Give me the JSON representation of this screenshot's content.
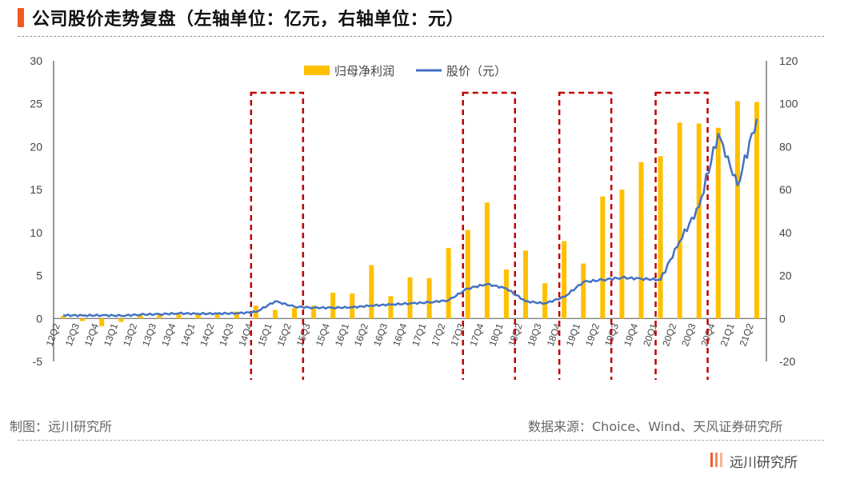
{
  "header": {
    "title": "公司股价走势复盘（左轴单位：亿元，右轴单位：元）"
  },
  "footer": {
    "left_note": "制图：远川研究所",
    "right_note": "数据来源：Choice、Wind、天风证券研究所",
    "brand": "远川研究所"
  },
  "chart_data": {
    "type": "bar",
    "categories": [
      "12Q2",
      "12Q3",
      "12Q4",
      "13Q1",
      "13Q2",
      "13Q3",
      "13Q4",
      "14Q1",
      "14Q2",
      "14Q3",
      "14Q4",
      "15Q1",
      "15Q2",
      "15Q3",
      "15Q4",
      "16Q1",
      "16Q2",
      "16Q3",
      "16Q4",
      "17Q1",
      "17Q2",
      "17Q3",
      "17Q4",
      "18Q1",
      "18Q2",
      "18Q3",
      "18Q4",
      "19Q1",
      "19Q2",
      "19Q3",
      "19Q4",
      "20Q1",
      "20Q2",
      "20Q3",
      "20Q4",
      "21Q1",
      "21Q2"
    ],
    "y_left": {
      "lim": [
        -5,
        30
      ],
      "ticks": [
        -5,
        0,
        5,
        10,
        15,
        20,
        25,
        30
      ],
      "unit": "亿元"
    },
    "y_right": {
      "lim": [
        -20,
        120
      ],
      "ticks": [
        -20,
        0,
        20,
        40,
        60,
        80,
        100,
        120
      ],
      "unit": "元"
    },
    "legend_position": "top-center",
    "series": [
      {
        "name": "归母净利润",
        "kind": "bar",
        "axis": "left",
        "color": "#ffc000",
        "values": [
          0.3,
          -0.3,
          -0.9,
          -0.4,
          0.4,
          0.5,
          0.5,
          0.6,
          0.7,
          0.8,
          1.5,
          1.0,
          1.2,
          1.5,
          3.0,
          2.9,
          6.2,
          2.6,
          4.8,
          4.7,
          8.2,
          10.3,
          13.5,
          5.7,
          7.9,
          4.1,
          9.0,
          6.4,
          14.2,
          15.0,
          18.2,
          18.9,
          22.8,
          22.7,
          22.2,
          25.3,
          25.2
        ]
      },
      {
        "name": "股价（元）",
        "kind": "line",
        "axis": "right",
        "color": "#4472c4",
        "values": [
          1.5,
          1.4,
          1.5,
          1.3,
          1.8,
          2.0,
          2.4,
          2.2,
          2.3,
          2.4,
          3.0,
          8.0,
          5.5,
          5.0,
          5.0,
          5.2,
          6.0,
          6.5,
          7.0,
          7.5,
          8.5,
          14.0,
          16.0,
          14.0,
          8.0,
          7.0,
          10.0,
          17.0,
          18.0,
          19.0,
          18.5,
          18.0,
          36.0,
          52.0,
          86.0,
          62.0,
          93.0
        ]
      }
    ],
    "highlight_boxes": [
      {
        "from": "14Q4",
        "to": "15Q2"
      },
      {
        "from": "17Q3",
        "to": "18Q1"
      },
      {
        "from": "18Q4",
        "to": "19Q2"
      },
      {
        "from": "20Q1",
        "to": "20Q3"
      }
    ],
    "grid": false
  }
}
